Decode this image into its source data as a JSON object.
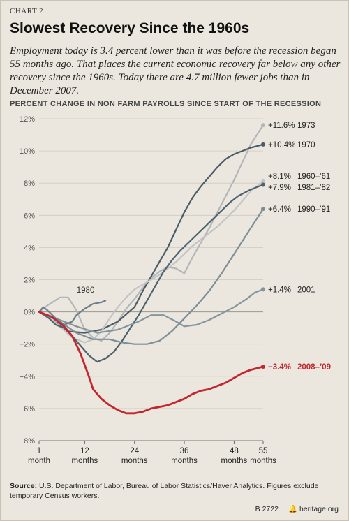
{
  "header": {
    "chart_number": "CHART 2",
    "title": "Slowest Recovery Since the 1960s",
    "subtitle": "Employment today is 3.4 percent lower than it was before the recession began 55 months ago. That places the current economic recovery far below any other recovery since the 1960s. Today there are 4.7 million fewer jobs than in December 2007."
  },
  "footer": {
    "source_label": "Source:",
    "source_text": "U.S. Department of Labor, Bureau of Labor Statistics/Haver Analytics. Figures exclude temporary Census workers.",
    "report_id": "B 2722",
    "site": "heritage.org"
  },
  "chart_data": {
    "type": "line",
    "title": "PERCENT CHANGE IN NON FARM PAYROLLS SINCE START OF THE RECESSION",
    "xlim": [
      1,
      55
    ],
    "ylim": [
      -8,
      12
    ],
    "x_ticks": [
      {
        "value": 1,
        "label": [
          "1",
          "month"
        ]
      },
      {
        "value": 12,
        "label": [
          "12",
          "months"
        ]
      },
      {
        "value": 24,
        "label": [
          "24",
          "months"
        ]
      },
      {
        "value": 36,
        "label": [
          "36",
          "months"
        ]
      },
      {
        "value": 48,
        "label": [
          "48",
          "months"
        ]
      },
      {
        "value": 55,
        "label": [
          "55",
          "months"
        ]
      }
    ],
    "y_ticks": [
      {
        "value": 12,
        "label": "12%"
      },
      {
        "value": 10,
        "label": "10%"
      },
      {
        "value": 8,
        "label": "8%"
      },
      {
        "value": 6,
        "label": "6%"
      },
      {
        "value": 4,
        "label": "4%"
      },
      {
        "value": 2,
        "label": "2%"
      },
      {
        "value": 0,
        "label": "0%"
      },
      {
        "value": -2,
        "label": "−2%"
      },
      {
        "value": -4,
        "label": "−4%"
      },
      {
        "value": -6,
        "label": "−6%"
      },
      {
        "value": -8,
        "label": "−8%"
      }
    ],
    "grid": "horizontal",
    "series": [
      {
        "name": "1973",
        "end_value": "+11.6%",
        "color": "#b3b6b9",
        "width": 2.2,
        "end_marker": true,
        "points": [
          [
            1,
            0
          ],
          [
            3,
            0.4
          ],
          [
            6,
            0.9
          ],
          [
            8,
            0.9
          ],
          [
            10,
            0.1
          ],
          [
            12,
            -1.1
          ],
          [
            14,
            -1.6
          ],
          [
            16,
            -1.8
          ],
          [
            18,
            -1.3
          ],
          [
            20,
            -0.6
          ],
          [
            22,
            0.2
          ],
          [
            24,
            0.8
          ],
          [
            26,
            1.5
          ],
          [
            28,
            2.1
          ],
          [
            30,
            2.5
          ],
          [
            32,
            2.8
          ],
          [
            34,
            2.7
          ],
          [
            36,
            2.4
          ],
          [
            38,
            3.4
          ],
          [
            40,
            4.3
          ],
          [
            42,
            5.2
          ],
          [
            44,
            6.2
          ],
          [
            46,
            7.2
          ],
          [
            48,
            8.2
          ],
          [
            50,
            9.3
          ],
          [
            52,
            10.4
          ],
          [
            55,
            11.6
          ]
        ]
      },
      {
        "name": "1970",
        "end_value": "+10.4%",
        "color": "#4a5c68",
        "width": 2.2,
        "end_marker": true,
        "points": [
          [
            1,
            0
          ],
          [
            4,
            -0.5
          ],
          [
            8,
            -1.2
          ],
          [
            12,
            -1.3
          ],
          [
            16,
            -1.1
          ],
          [
            20,
            -0.6
          ],
          [
            24,
            0.3
          ],
          [
            26,
            1.3
          ],
          [
            28,
            2.2
          ],
          [
            30,
            3.1
          ],
          [
            32,
            4.0
          ],
          [
            34,
            5.1
          ],
          [
            36,
            6.2
          ],
          [
            38,
            7.1
          ],
          [
            40,
            7.8
          ],
          [
            42,
            8.4
          ],
          [
            44,
            9.0
          ],
          [
            46,
            9.5
          ],
          [
            48,
            9.8
          ],
          [
            50,
            10.0
          ],
          [
            52,
            10.2
          ],
          [
            55,
            10.4
          ]
        ]
      },
      {
        "name": "1960–’61",
        "end_value": "+8.1%",
        "color": "#c2c4c6",
        "width": 2.2,
        "end_marker": true,
        "points": [
          [
            1,
            0
          ],
          [
            3,
            -0.3
          ],
          [
            6,
            -0.9
          ],
          [
            9,
            -1.6
          ],
          [
            12,
            -1.9
          ],
          [
            14,
            -1.7
          ],
          [
            16,
            -1.2
          ],
          [
            18,
            -0.4
          ],
          [
            20,
            0.3
          ],
          [
            22,
            0.9
          ],
          [
            24,
            1.4
          ],
          [
            26,
            1.7
          ],
          [
            28,
            2.0
          ],
          [
            30,
            2.3
          ],
          [
            32,
            2.7
          ],
          [
            34,
            3.1
          ],
          [
            36,
            3.6
          ],
          [
            38,
            4.1
          ],
          [
            40,
            4.5
          ],
          [
            42,
            4.9
          ],
          [
            44,
            5.3
          ],
          [
            46,
            5.8
          ],
          [
            48,
            6.3
          ],
          [
            50,
            6.9
          ],
          [
            52,
            7.5
          ],
          [
            55,
            8.1
          ]
        ]
      },
      {
        "name": "1981–’82",
        "end_value": "+7.9%",
        "color": "#4d6270",
        "width": 2.2,
        "end_marker": true,
        "points": [
          [
            1,
            0
          ],
          [
            3,
            -0.3
          ],
          [
            5,
            -0.8
          ],
          [
            7,
            -1.0
          ],
          [
            9,
            -1.5
          ],
          [
            11,
            -2.1
          ],
          [
            13,
            -2.7
          ],
          [
            15,
            -3.1
          ],
          [
            17,
            -2.9
          ],
          [
            19,
            -2.5
          ],
          [
            21,
            -1.8
          ],
          [
            23,
            -1.0
          ],
          [
            25,
            -0.2
          ],
          [
            27,
            0.7
          ],
          [
            29,
            1.6
          ],
          [
            31,
            2.5
          ],
          [
            33,
            3.2
          ],
          [
            35,
            3.8
          ],
          [
            37,
            4.3
          ],
          [
            39,
            4.8
          ],
          [
            41,
            5.3
          ],
          [
            43,
            5.8
          ],
          [
            45,
            6.3
          ],
          [
            47,
            6.8
          ],
          [
            49,
            7.2
          ],
          [
            52,
            7.6
          ],
          [
            55,
            7.9
          ]
        ]
      },
      {
        "name": "1990–’91",
        "end_value": "+6.4%",
        "color": "#7f8d97",
        "width": 2.2,
        "end_marker": true,
        "points": [
          [
            1,
            0
          ],
          [
            6,
            -0.6
          ],
          [
            10,
            -1.3
          ],
          [
            14,
            -1.7
          ],
          [
            18,
            -1.7
          ],
          [
            21,
            -1.9
          ],
          [
            24,
            -2.0
          ],
          [
            27,
            -2.0
          ],
          [
            30,
            -1.8
          ],
          [
            33,
            -1.2
          ],
          [
            36,
            -0.4
          ],
          [
            39,
            0.4
          ],
          [
            42,
            1.3
          ],
          [
            45,
            2.4
          ],
          [
            48,
            3.6
          ],
          [
            51,
            4.8
          ],
          [
            53,
            5.6
          ],
          [
            55,
            6.4
          ]
        ]
      },
      {
        "name": "2001",
        "end_value": "+1.4%",
        "color": "#8595a0",
        "width": 2.2,
        "end_marker": true,
        "points": [
          [
            1,
            0
          ],
          [
            5,
            -0.4
          ],
          [
            10,
            -0.9
          ],
          [
            15,
            -1.3
          ],
          [
            20,
            -1.1
          ],
          [
            25,
            -0.6
          ],
          [
            28,
            -0.2
          ],
          [
            31,
            -0.2
          ],
          [
            34,
            -0.6
          ],
          [
            36,
            -0.9
          ],
          [
            39,
            -0.8
          ],
          [
            42,
            -0.5
          ],
          [
            45,
            -0.1
          ],
          [
            48,
            0.3
          ],
          [
            51,
            0.8
          ],
          [
            53,
            1.2
          ],
          [
            55,
            1.4
          ]
        ]
      },
      {
        "name": "1980",
        "end_value": "",
        "color": "#6e7f8b",
        "width": 2.2,
        "end_marker": false,
        "label_at": [
          12.2,
          1.2
        ],
        "points": [
          [
            1,
            0
          ],
          [
            2,
            0.3
          ],
          [
            3,
            0.1
          ],
          [
            5,
            -0.4
          ],
          [
            7,
            -0.8
          ],
          [
            9,
            -0.6
          ],
          [
            10,
            -0.2
          ],
          [
            12,
            0.2
          ],
          [
            14,
            0.5
          ],
          [
            16,
            0.6
          ],
          [
            17,
            0.7
          ]
        ]
      },
      {
        "name": "2008–’09",
        "end_value": "−3.4%",
        "color": "#c1272d",
        "width": 2.8,
        "end_marker": true,
        "points": [
          [
            1,
            0
          ],
          [
            4,
            -0.3
          ],
          [
            7,
            -0.9
          ],
          [
            9,
            -1.5
          ],
          [
            11,
            -2.6
          ],
          [
            13,
            -4.0
          ],
          [
            14,
            -4.8
          ],
          [
            16,
            -5.4
          ],
          [
            18,
            -5.8
          ],
          [
            20,
            -6.1
          ],
          [
            22,
            -6.3
          ],
          [
            24,
            -6.3
          ],
          [
            26,
            -6.2
          ],
          [
            28,
            -6.0
          ],
          [
            30,
            -5.9
          ],
          [
            32,
            -5.8
          ],
          [
            34,
            -5.6
          ],
          [
            36,
            -5.4
          ],
          [
            38,
            -5.1
          ],
          [
            40,
            -4.9
          ],
          [
            42,
            -4.8
          ],
          [
            44,
            -4.6
          ],
          [
            46,
            -4.4
          ],
          [
            48,
            -4.1
          ],
          [
            50,
            -3.8
          ],
          [
            52,
            -3.6
          ],
          [
            55,
            -3.4
          ]
        ]
      }
    ]
  }
}
